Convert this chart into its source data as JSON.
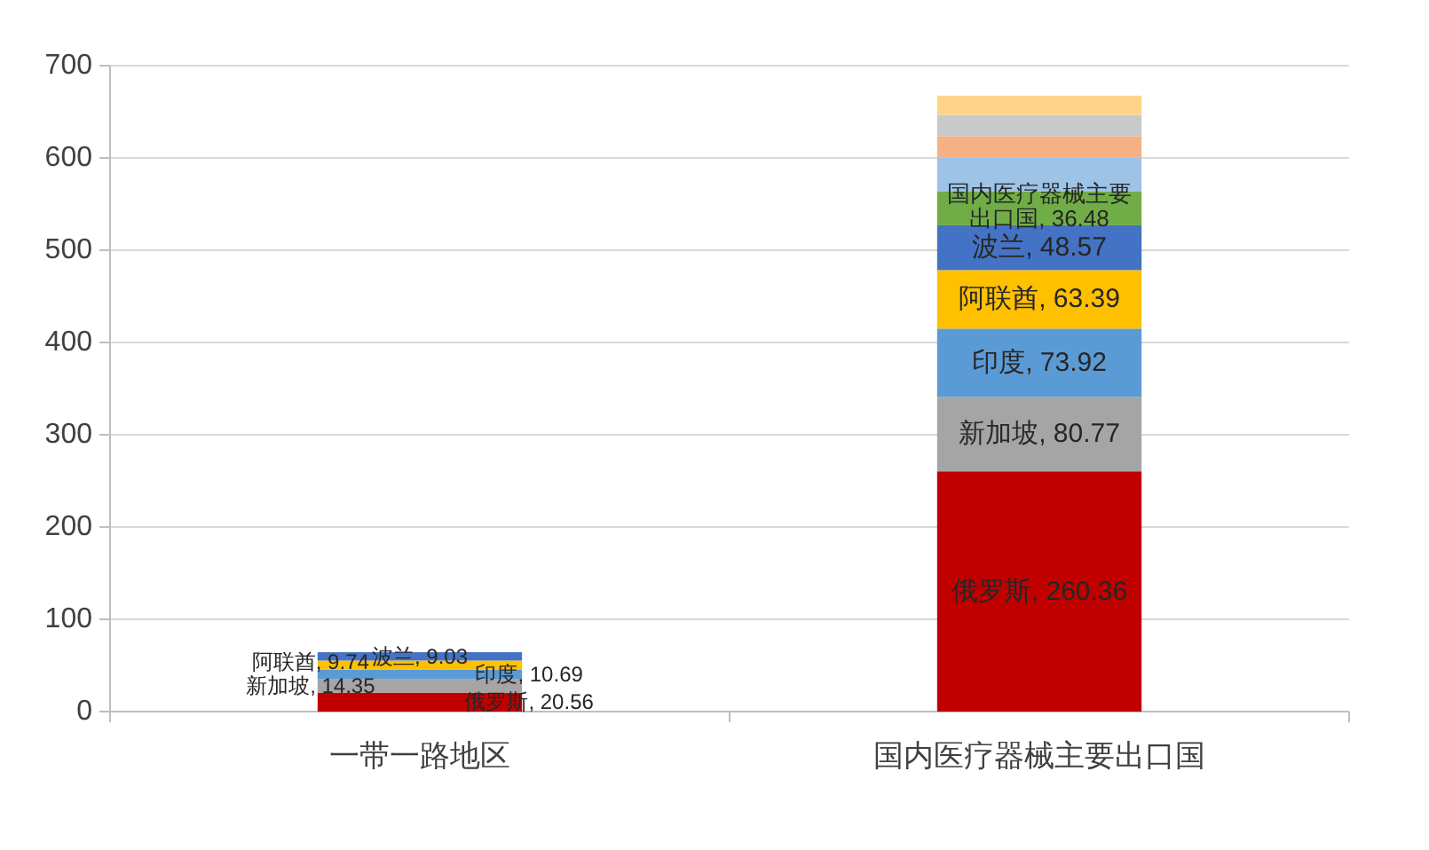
{
  "chart_data": {
    "type": "bar",
    "stacked": true,
    "categories": [
      "一带一路地区",
      "国内医疗器械主要出口国"
    ],
    "series": [
      {
        "color": "#c00000",
        "values": [
          20.56,
          260.36
        ],
        "value_labels": [
          "俄罗斯, 20.56",
          "俄罗斯, 260.36"
        ]
      },
      {
        "color": "#a5a5a5",
        "values": [
          14.35,
          80.77
        ],
        "value_labels": [
          "新加坡, 14.35",
          "新加坡, 80.77"
        ]
      },
      {
        "color": "#5b9bd5",
        "values": [
          10.69,
          73.92
        ],
        "value_labels": [
          "印度, 10.69",
          "印度, 73.92"
        ]
      },
      {
        "color": "#ffc000",
        "values": [
          9.74,
          63.39
        ],
        "value_labels": [
          "阿联酋, 9.74",
          "阿联酋, 63.39"
        ]
      },
      {
        "color": "#4472c4",
        "values": [
          9.03,
          48.57
        ],
        "value_labels": [
          "波兰, 9.03",
          "波兰, 48.57"
        ]
      },
      {
        "color": "#70ad47",
        "values": [
          null,
          36.48
        ],
        "value_labels": [
          null,
          "国内医疗器械主要出口国, 36.48"
        ]
      },
      {
        "color": "#9dc3e6",
        "values": [
          null,
          37
        ]
      },
      {
        "color": "#f4b183",
        "values": [
          null,
          23
        ]
      },
      {
        "color": "#c9c9c9",
        "values": [
          null,
          23
        ]
      },
      {
        "color": "#ffd48a",
        "values": [
          null,
          21
        ]
      }
    ],
    "ylim": [
      0,
      700
    ],
    "yticks": [
      0,
      100,
      200,
      300,
      400,
      500,
      600,
      700
    ],
    "grid": "y"
  }
}
